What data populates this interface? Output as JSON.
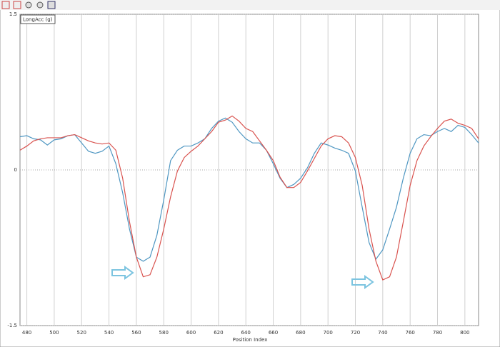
{
  "chart_data": {
    "type": "line",
    "y_label": "LongAcc (g)",
    "x_label": "Position Index",
    "xlim": [
      475,
      810
    ],
    "xticks": [
      480,
      500,
      520,
      540,
      560,
      580,
      600,
      620,
      640,
      660,
      680,
      700,
      720,
      740,
      760,
      780,
      800
    ],
    "ylim": [
      -1.5,
      1.5
    ],
    "yticks": [
      -1.5,
      0,
      1.5
    ],
    "grid": true,
    "x": [
      475,
      480,
      485,
      490,
      495,
      500,
      505,
      510,
      515,
      520,
      525,
      530,
      535,
      540,
      545,
      550,
      555,
      560,
      565,
      570,
      575,
      580,
      585,
      590,
      595,
      600,
      605,
      610,
      615,
      620,
      625,
      630,
      635,
      640,
      645,
      650,
      655,
      660,
      665,
      670,
      675,
      680,
      685,
      690,
      695,
      700,
      705,
      710,
      715,
      720,
      725,
      730,
      735,
      740,
      745,
      750,
      755,
      760,
      765,
      770,
      775,
      780,
      785,
      790,
      795,
      800,
      805,
      810
    ],
    "series": [
      {
        "color": "#4f97c2",
        "values": [
          0.32,
          0.33,
          0.3,
          0.29,
          0.24,
          0.29,
          0.3,
          0.33,
          0.34,
          0.26,
          0.18,
          0.16,
          0.18,
          0.23,
          0.06,
          -0.22,
          -0.57,
          -0.84,
          -0.88,
          -0.84,
          -0.63,
          -0.29,
          0.09,
          0.19,
          0.23,
          0.23,
          0.26,
          0.3,
          0.4,
          0.47,
          0.5,
          0.46,
          0.37,
          0.3,
          0.26,
          0.26,
          0.19,
          0.06,
          -0.08,
          -0.17,
          -0.14,
          -0.08,
          0.02,
          0.16,
          0.26,
          0.24,
          0.21,
          0.19,
          0.16,
          -0.01,
          -0.36,
          -0.7,
          -0.86,
          -0.77,
          -0.57,
          -0.36,
          -0.08,
          0.16,
          0.3,
          0.34,
          0.33,
          0.37,
          0.4,
          0.37,
          0.43,
          0.41,
          0.34,
          0.26
        ]
      },
      {
        "color": "#d9534f",
        "values": [
          0.19,
          0.23,
          0.28,
          0.3,
          0.31,
          0.31,
          0.31,
          0.33,
          0.34,
          0.31,
          0.28,
          0.26,
          0.25,
          0.26,
          0.19,
          -0.08,
          -0.5,
          -0.84,
          -1.03,
          -1.01,
          -0.84,
          -0.57,
          -0.26,
          -0.01,
          0.12,
          0.18,
          0.23,
          0.3,
          0.37,
          0.46,
          0.48,
          0.52,
          0.47,
          0.4,
          0.37,
          0.28,
          0.19,
          0.09,
          -0.07,
          -0.17,
          -0.17,
          -0.12,
          -0.01,
          0.11,
          0.23,
          0.3,
          0.33,
          0.32,
          0.26,
          0.12,
          -0.15,
          -0.57,
          -0.88,
          -1.06,
          -1.03,
          -0.84,
          -0.5,
          -0.15,
          0.09,
          0.23,
          0.32,
          0.4,
          0.47,
          0.49,
          0.45,
          0.43,
          0.4,
          0.3
        ]
      }
    ]
  }
}
